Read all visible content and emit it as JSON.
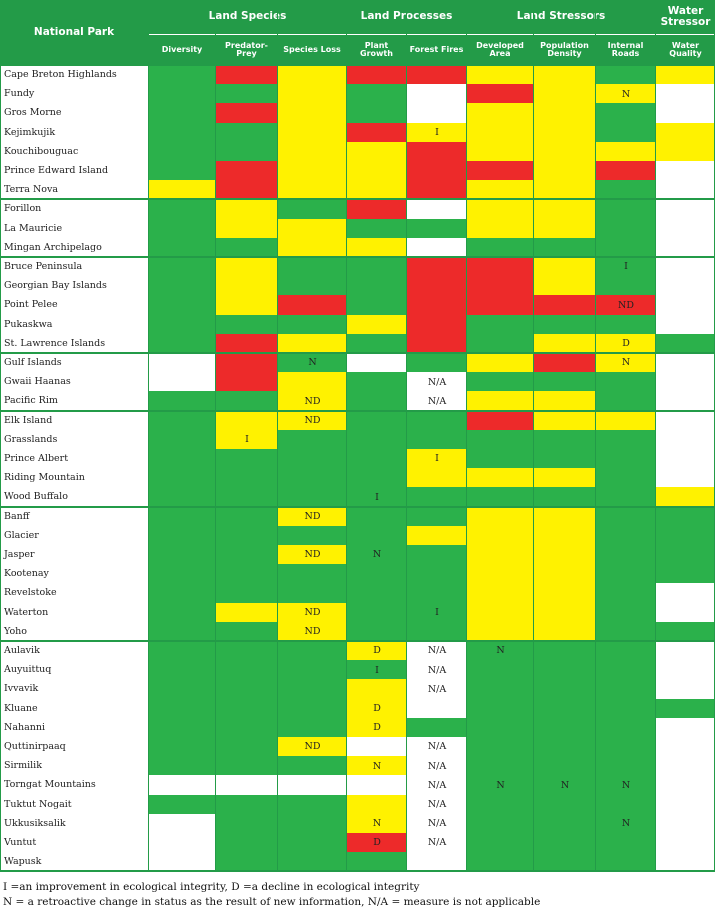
{
  "colors": {
    "G": "#2bb14b",
    "Y": "#fff200",
    "R": "#ed2a2a",
    "W": "#ffffff",
    "frame": "#239b48"
  },
  "header": {
    "national_park": "National Park",
    "groups": [
      "Land Species",
      "Land Processes",
      "Land Stressors",
      "Water Stressor"
    ],
    "columns": [
      "Diversity",
      "Predator-Prey",
      "Species Loss",
      "Plant Growth",
      "Forest Fires",
      "Developed Area",
      "Population Density",
      "Internal Roads",
      "Water Quality"
    ]
  },
  "parks": [
    {
      "name": "Cape Breton Highlands",
      "cells": [
        "G",
        "R",
        "Y",
        "R",
        "R",
        "Y",
        "Y",
        "G",
        "Y"
      ],
      "marks": [
        "",
        "",
        "",
        "",
        "",
        "",
        "",
        "",
        ""
      ]
    },
    {
      "name": "Fundy",
      "cells": [
        "G",
        "G",
        "Y",
        "G",
        "W",
        "R",
        "Y",
        "Y",
        "W"
      ],
      "marks": [
        "",
        "",
        "",
        "",
        "",
        "",
        "",
        "N",
        ""
      ]
    },
    {
      "name": "Gros Morne",
      "cells": [
        "G",
        "R",
        "Y",
        "G",
        "W",
        "Y",
        "Y",
        "G",
        "W"
      ],
      "marks": [
        "",
        "",
        "",
        "",
        "",
        "",
        "",
        "",
        ""
      ]
    },
    {
      "name": "Kejimkujik",
      "cells": [
        "G",
        "G",
        "Y",
        "R",
        "Y",
        "Y",
        "Y",
        "G",
        "Y"
      ],
      "marks": [
        "",
        "",
        "",
        "",
        "I",
        "",
        "",
        "",
        ""
      ]
    },
    {
      "name": "Kouchibouguac",
      "cells": [
        "G",
        "G",
        "Y",
        "Y",
        "R",
        "Y",
        "Y",
        "Y",
        "Y"
      ],
      "marks": [
        "",
        "",
        "",
        "",
        "",
        "",
        "",
        "",
        ""
      ]
    },
    {
      "name": "Prince Edward Island",
      "cells": [
        "G",
        "R",
        "Y",
        "Y",
        "R",
        "R",
        "Y",
        "R",
        "W"
      ],
      "marks": [
        "",
        "",
        "",
        "",
        "",
        "",
        "",
        "",
        ""
      ]
    },
    {
      "name": "Terra Nova",
      "cells": [
        "Y",
        "R",
        "Y",
        "Y",
        "R",
        "Y",
        "Y",
        "G",
        "W"
      ],
      "marks": [
        "",
        "",
        "",
        "",
        "",
        "",
        "",
        "",
        ""
      ]
    },
    {
      "name": "Forillon",
      "cells": [
        "G",
        "Y",
        "G",
        "R",
        "W",
        "Y",
        "Y",
        "G",
        "W"
      ],
      "marks": [
        "",
        "",
        "",
        "",
        "",
        "",
        "",
        "",
        ""
      ]
    },
    {
      "name": "La Mauricie",
      "cells": [
        "G",
        "Y",
        "Y",
        "G",
        "G",
        "Y",
        "Y",
        "G",
        "W"
      ],
      "marks": [
        "",
        "",
        "",
        "",
        "",
        "",
        "",
        "",
        ""
      ]
    },
    {
      "name": "Mingan Archipelago",
      "cells": [
        "G",
        "G",
        "Y",
        "Y",
        "W",
        "G",
        "G",
        "G",
        "W"
      ],
      "marks": [
        "",
        "",
        "",
        "",
        "",
        "",
        "",
        "",
        ""
      ]
    },
    {
      "name": "Bruce Peninsula",
      "cells": [
        "G",
        "Y",
        "G",
        "G",
        "R",
        "R",
        "Y",
        "G",
        "W"
      ],
      "marks": [
        "",
        "",
        "",
        "",
        "",
        "",
        "",
        "I",
        ""
      ]
    },
    {
      "name": "Georgian Bay Islands",
      "cells": [
        "G",
        "Y",
        "G",
        "G",
        "R",
        "R",
        "Y",
        "G",
        "W"
      ],
      "marks": [
        "",
        "",
        "",
        "",
        "",
        "",
        "",
        "",
        ""
      ]
    },
    {
      "name": "Point Pelee",
      "cells": [
        "G",
        "Y",
        "R",
        "G",
        "R",
        "R",
        "R",
        "R",
        "W"
      ],
      "marks": [
        "",
        "",
        "",
        "",
        "",
        "",
        "",
        "ND",
        ""
      ]
    },
    {
      "name": "Pukaskwa",
      "cells": [
        "G",
        "G",
        "G",
        "Y",
        "R",
        "G",
        "G",
        "G",
        "W"
      ],
      "marks": [
        "",
        "",
        "",
        "",
        "",
        "",
        "",
        "",
        ""
      ]
    },
    {
      "name": "St. Lawrence Islands",
      "cells": [
        "G",
        "R",
        "Y",
        "G",
        "R",
        "G",
        "Y",
        "Y",
        "G"
      ],
      "marks": [
        "",
        "",
        "",
        "",
        "",
        "",
        "",
        "D",
        ""
      ]
    },
    {
      "name": "Gulf Islands",
      "cells": [
        "W",
        "R",
        "G",
        "W",
        "G",
        "Y",
        "R",
        "Y",
        "W"
      ],
      "marks": [
        "",
        "",
        "N",
        "",
        "",
        "",
        "",
        "N",
        ""
      ]
    },
    {
      "name": "Gwaii Haanas",
      "cells": [
        "W",
        "R",
        "Y",
        "G",
        "W",
        "G",
        "G",
        "G",
        "W"
      ],
      "marks": [
        "",
        "",
        "",
        "",
        "N/A",
        "",
        "",
        "",
        ""
      ]
    },
    {
      "name": "Pacific Rim",
      "cells": [
        "G",
        "G",
        "Y",
        "G",
        "W",
        "Y",
        "Y",
        "G",
        "W"
      ],
      "marks": [
        "",
        "",
        "ND",
        "",
        "N/A",
        "",
        "",
        "",
        ""
      ]
    },
    {
      "name": "Elk Island",
      "cells": [
        "G",
        "Y",
        "Y",
        "G",
        "G",
        "R",
        "Y",
        "Y",
        "W"
      ],
      "marks": [
        "",
        "",
        "ND",
        "",
        "",
        "",
        "",
        "",
        ""
      ]
    },
    {
      "name": "Grasslands",
      "cells": [
        "G",
        "Y",
        "G",
        "G",
        "G",
        "G",
        "G",
        "G",
        "W"
      ],
      "marks": [
        "",
        "I",
        "",
        "",
        "",
        "",
        "",
        "",
        ""
      ]
    },
    {
      "name": "Prince Albert",
      "cells": [
        "G",
        "G",
        "G",
        "G",
        "Y",
        "G",
        "G",
        "G",
        "W"
      ],
      "marks": [
        "",
        "",
        "",
        "",
        "I",
        "",
        "",
        "",
        ""
      ]
    },
    {
      "name": "Riding Mountain",
      "cells": [
        "G",
        "G",
        "G",
        "G",
        "Y",
        "Y",
        "Y",
        "G",
        "W"
      ],
      "marks": [
        "",
        "",
        "",
        "",
        "",
        "",
        "",
        "",
        ""
      ]
    },
    {
      "name": "Wood Buffalo",
      "cells": [
        "G",
        "G",
        "G",
        "G",
        "G",
        "G",
        "G",
        "G",
        "Y"
      ],
      "marks": [
        "",
        "",
        "",
        "I",
        "",
        "",
        "",
        "",
        ""
      ]
    },
    {
      "name": "Banff",
      "cells": [
        "G",
        "G",
        "Y",
        "G",
        "G",
        "Y",
        "Y",
        "G",
        "G"
      ],
      "marks": [
        "",
        "",
        "ND",
        "",
        "",
        "",
        "",
        "",
        ""
      ]
    },
    {
      "name": "Glacier",
      "cells": [
        "G",
        "G",
        "G",
        "G",
        "Y",
        "Y",
        "Y",
        "G",
        "G"
      ],
      "marks": [
        "",
        "",
        "",
        "",
        "",
        "",
        "",
        "",
        ""
      ]
    },
    {
      "name": "Jasper",
      "cells": [
        "G",
        "G",
        "Y",
        "G",
        "G",
        "Y",
        "Y",
        "G",
        "G"
      ],
      "marks": [
        "",
        "",
        "ND",
        "N",
        "",
        "",
        "",
        "",
        ""
      ]
    },
    {
      "name": "Kootenay",
      "cells": [
        "G",
        "G",
        "G",
        "G",
        "G",
        "Y",
        "Y",
        "G",
        "G"
      ],
      "marks": [
        "",
        "",
        "",
        "",
        "",
        "",
        "",
        "",
        ""
      ]
    },
    {
      "name": "Revelstoke",
      "cells": [
        "G",
        "G",
        "G",
        "G",
        "G",
        "Y",
        "Y",
        "G",
        "W"
      ],
      "marks": [
        "",
        "",
        "",
        "",
        "",
        "",
        "",
        "",
        ""
      ]
    },
    {
      "name": "Waterton",
      "cells": [
        "G",
        "Y",
        "Y",
        "G",
        "G",
        "Y",
        "Y",
        "G",
        "W"
      ],
      "marks": [
        "",
        "",
        "ND",
        "",
        "I",
        "",
        "",
        "",
        ""
      ]
    },
    {
      "name": "Yoho",
      "cells": [
        "G",
        "G",
        "Y",
        "G",
        "G",
        "Y",
        "Y",
        "G",
        "G"
      ],
      "marks": [
        "",
        "",
        "ND",
        "",
        "",
        "",
        "",
        "",
        ""
      ]
    },
    {
      "name": "Aulavik",
      "cells": [
        "G",
        "G",
        "G",
        "Y",
        "W",
        "G",
        "G",
        "G",
        "W"
      ],
      "marks": [
        "",
        "",
        "",
        "D",
        "N/A",
        "N",
        "",
        "",
        ""
      ]
    },
    {
      "name": "Auyuittuq",
      "cells": [
        "G",
        "G",
        "G",
        "G",
        "W",
        "G",
        "G",
        "G",
        "W"
      ],
      "marks": [
        "",
        "",
        "",
        "I",
        "N/A",
        "",
        "",
        "",
        ""
      ]
    },
    {
      "name": "Ivvavik",
      "cells": [
        "G",
        "G",
        "G",
        "Y",
        "W",
        "G",
        "G",
        "G",
        "W"
      ],
      "marks": [
        "",
        "",
        "",
        "",
        "N/A",
        "",
        "",
        "",
        ""
      ]
    },
    {
      "name": "Kluane",
      "cells": [
        "G",
        "G",
        "G",
        "Y",
        "W",
        "G",
        "G",
        "G",
        "G"
      ],
      "marks": [
        "",
        "",
        "",
        "D",
        "",
        "",
        "",
        "",
        ""
      ]
    },
    {
      "name": "Nahanni",
      "cells": [
        "G",
        "G",
        "G",
        "Y",
        "G",
        "G",
        "G",
        "G",
        "W"
      ],
      "marks": [
        "",
        "",
        "",
        "D",
        "",
        "",
        "",
        "",
        ""
      ]
    },
    {
      "name": "Quttinirpaaq",
      "cells": [
        "G",
        "G",
        "Y",
        "W",
        "W",
        "G",
        "G",
        "G",
        "W"
      ],
      "marks": [
        "",
        "",
        "ND",
        "",
        "N/A",
        "",
        "",
        "",
        ""
      ]
    },
    {
      "name": "Sirmilik",
      "cells": [
        "G",
        "G",
        "G",
        "Y",
        "W",
        "G",
        "G",
        "G",
        "W"
      ],
      "marks": [
        "",
        "",
        "",
        "N",
        "N/A",
        "",
        "",
        "",
        ""
      ]
    },
    {
      "name": "Torngat Mountains",
      "cells": [
        "W",
        "W",
        "W",
        "W",
        "W",
        "G",
        "G",
        "G",
        "W"
      ],
      "marks": [
        "",
        "",
        "",
        "",
        "N/A",
        "N",
        "N",
        "N",
        ""
      ]
    },
    {
      "name": "Tuktut Nogait",
      "cells": [
        "G",
        "G",
        "G",
        "Y",
        "W",
        "G",
        "G",
        "G",
        "W"
      ],
      "marks": [
        "",
        "",
        "",
        "",
        "N/A",
        "",
        "",
        "",
        ""
      ]
    },
    {
      "name": "Ukkusiksalik",
      "cells": [
        "W",
        "G",
        "G",
        "Y",
        "W",
        "G",
        "G",
        "G",
        "W"
      ],
      "marks": [
        "",
        "",
        "",
        "N",
        "N/A",
        "",
        "",
        "N",
        ""
      ]
    },
    {
      "name": "Vuntut",
      "cells": [
        "W",
        "G",
        "G",
        "R",
        "W",
        "G",
        "G",
        "G",
        "W"
      ],
      "marks": [
        "",
        "",
        "",
        "D",
        "N/A",
        "",
        "",
        "",
        ""
      ]
    },
    {
      "name": "Wapusk",
      "cells": [
        "W",
        "G",
        "G",
        "G",
        "W",
        "G",
        "G",
        "G",
        "W"
      ],
      "marks": [
        "",
        "",
        "",
        "",
        "",
        "",
        "",
        "",
        ""
      ]
    }
  ],
  "footnotes": [
    "I =an improvement in ecological integrity, D =a decline in ecological integrity",
    "N = a retroactive change in status as the result of new information, N/A = measure is not applicable"
  ]
}
